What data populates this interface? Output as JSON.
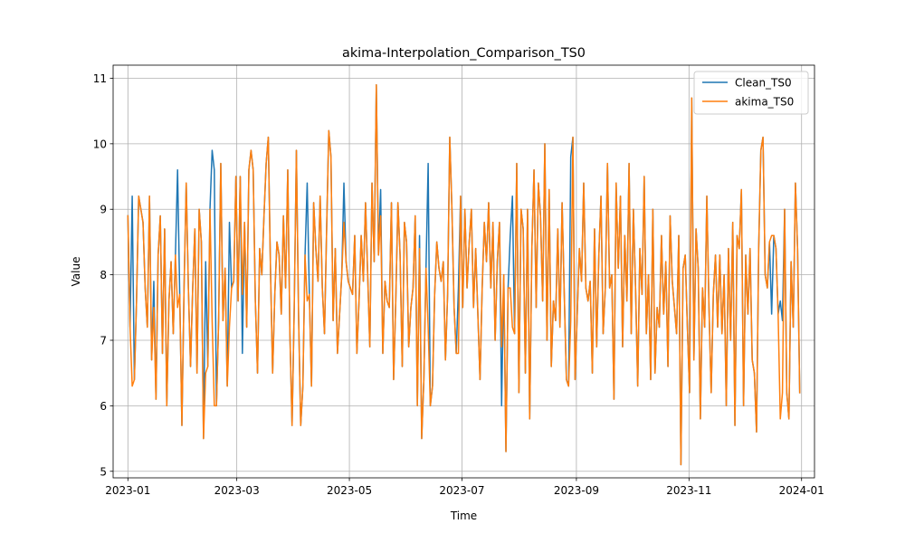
{
  "chart_data": {
    "type": "line",
    "title": "akima-Interpolation_Comparison_TS0",
    "xlabel": "Time",
    "ylabel": "Value",
    "x_start": "2023-01-01",
    "x_end": "2023-12-31",
    "xlim": [
      "2022-12-24",
      "2024-01-08"
    ],
    "ylim": [
      4.9,
      11.2
    ],
    "yticks": [
      5,
      6,
      7,
      8,
      9,
      10,
      11
    ],
    "xticks": [
      "2023-01",
      "2023-03",
      "2023-05",
      "2023-07",
      "2023-09",
      "2023-11",
      "2024-01"
    ],
    "grid": true,
    "legend": "top-right",
    "series": [
      {
        "name": "Clean_TS0",
        "color": "#1f77b4",
        "values": [
          8.9,
          7.2,
          9.2,
          6.4,
          7.6,
          9.2,
          9.0,
          8.8,
          7.8,
          7.2,
          9.2,
          6.7,
          7.9,
          6.1,
          8.3,
          8.9,
          6.8,
          8.7,
          6.0,
          7.6,
          8.2,
          7.1,
          8.3,
          9.6,
          7.7,
          5.7,
          7.8,
          9.4,
          7.8,
          6.6,
          7.8,
          8.7,
          6.5,
          9.0,
          8.5,
          5.5,
          8.2,
          6.6,
          9.0,
          9.9,
          9.6,
          6.0,
          7.3,
          9.7,
          7.3,
          8.1,
          6.3,
          8.8,
          7.8,
          7.9,
          9.5,
          7.6,
          9.5,
          6.8,
          8.8,
          7.2,
          9.6,
          9.9,
          9.6,
          7.6,
          6.5,
          8.4,
          8.0,
          8.9,
          9.7,
          10.1,
          8.1,
          6.5,
          7.7,
          8.5,
          8.3,
          7.4,
          8.9,
          7.8,
          9.6,
          7.1,
          5.7,
          7.5,
          9.9,
          7.4,
          5.7,
          6.3,
          8.3,
          9.4,
          7.7,
          6.3,
          9.1,
          8.4,
          7.9,
          9.2,
          7.8,
          7.1,
          8.7,
          10.2,
          9.8,
          7.3,
          8.4,
          6.8,
          7.4,
          8.0,
          9.4,
          8.2,
          7.9,
          7.8,
          7.7,
          8.6,
          6.8,
          7.6,
          8.6,
          7.9,
          9.1,
          8.0,
          6.9,
          9.4,
          8.2,
          10.9,
          8.3,
          9.3,
          6.8,
          7.9,
          7.6,
          7.5,
          9.1,
          6.4,
          7.6,
          9.1,
          8.3,
          6.6,
          8.8,
          8.5,
          6.9,
          7.5,
          7.8,
          8.9,
          6.0,
          8.6,
          5.5,
          6.4,
          8.1,
          9.7,
          6.0,
          6.3,
          7.7,
          8.5,
          8.1,
          7.9,
          8.2,
          6.7,
          7.7,
          10.1,
          9.0,
          7.5,
          6.8,
          7.8,
          9.2,
          7.5,
          9.0,
          7.8,
          8.5,
          9.0,
          7.5,
          8.4,
          7.4,
          6.4,
          7.8,
          8.8,
          8.2,
          9.1,
          7.8,
          8.8,
          7.0,
          8.2,
          8.8,
          6.0,
          8.0,
          5.3,
          7.8,
          8.6,
          9.2,
          7.1,
          9.7,
          6.2,
          9.0,
          8.7,
          6.5,
          9.0,
          5.8,
          8.4,
          9.6,
          7.5,
          9.4,
          8.9,
          7.6,
          10.0,
          7.0,
          9.3,
          6.6,
          7.6,
          7.3,
          8.7,
          7.2,
          9.1,
          7.7,
          6.4,
          6.3,
          9.8,
          10.1,
          6.4,
          7.4,
          8.4,
          7.9,
          9.4,
          7.8,
          7.6,
          7.9,
          6.5,
          8.7,
          6.9,
          8.3,
          9.2,
          7.1,
          7.8,
          9.7,
          7.8,
          8.0,
          6.1,
          9.4,
          8.1,
          9.2,
          6.9,
          8.6,
          7.6,
          9.7,
          7.1,
          9.0,
          7.8,
          6.3,
          8.4,
          7.7,
          9.5,
          7.1,
          8.0,
          6.4,
          9.0,
          6.5,
          7.5,
          7.2,
          8.6,
          7.4,
          8.2,
          6.6,
          8.9,
          7.9,
          7.5,
          7.1,
          8.6,
          5.1,
          8.1,
          8.3,
          7.2,
          6.2,
          10.7,
          6.7,
          8.7,
          8.1,
          5.8,
          7.8,
          7.2,
          9.2,
          7.5,
          6.2,
          7.7,
          8.3,
          7.2,
          8.3,
          7.1,
          8.0,
          6.0,
          8.4,
          7.0,
          8.8,
          5.7,
          8.6,
          8.4,
          9.3,
          6.0,
          8.3,
          7.4,
          8.4,
          6.7,
          6.5,
          5.6,
          8.4,
          9.9,
          10.1,
          8.0,
          7.8,
          8.5,
          7.4,
          8.6,
          8.4,
          7.4,
          7.6,
          7.3,
          9.0,
          6.2,
          5.8,
          8.2,
          7.2,
          9.4,
          8.4,
          6.2
        ]
      },
      {
        "name": "akima_TS0",
        "color": "#ff7f0e",
        "values": [
          8.9,
          7.2,
          6.3,
          6.4,
          7.6,
          9.2,
          9.0,
          8.8,
          7.8,
          7.2,
          9.2,
          6.7,
          7.5,
          6.1,
          8.3,
          8.9,
          6.8,
          8.7,
          6.0,
          7.6,
          8.2,
          7.1,
          8.3,
          7.5,
          7.7,
          5.7,
          7.8,
          9.4,
          7.8,
          6.6,
          7.8,
          8.7,
          6.5,
          9.0,
          8.5,
          5.5,
          6.5,
          6.6,
          9.0,
          7.3,
          6.0,
          6.0,
          7.3,
          9.7,
          7.3,
          8.1,
          6.3,
          7.2,
          7.8,
          7.9,
          9.5,
          7.6,
          9.5,
          7.7,
          8.8,
          7.2,
          9.6,
          9.9,
          9.6,
          7.6,
          6.5,
          8.4,
          8.0,
          8.9,
          9.7,
          10.1,
          8.1,
          6.5,
          7.7,
          8.5,
          8.3,
          7.4,
          8.9,
          7.8,
          9.6,
          7.1,
          5.7,
          7.5,
          9.9,
          7.4,
          5.7,
          6.3,
          8.3,
          7.6,
          7.7,
          6.3,
          9.1,
          8.4,
          7.9,
          9.2,
          7.8,
          7.1,
          8.7,
          10.2,
          9.8,
          7.3,
          8.4,
          6.8,
          7.4,
          8.0,
          8.8,
          8.2,
          7.9,
          7.8,
          7.7,
          8.6,
          6.8,
          7.6,
          8.6,
          7.9,
          9.1,
          8.0,
          6.9,
          9.4,
          8.2,
          10.9,
          8.3,
          8.9,
          6.8,
          7.9,
          7.6,
          7.5,
          9.1,
          6.4,
          7.6,
          9.1,
          8.3,
          6.6,
          8.8,
          8.5,
          6.9,
          7.5,
          7.8,
          8.9,
          6.0,
          8.4,
          5.5,
          6.4,
          8.1,
          7.2,
          6.0,
          6.3,
          7.7,
          8.5,
          8.1,
          7.9,
          8.2,
          6.7,
          7.7,
          10.1,
          9.0,
          7.5,
          6.8,
          6.8,
          9.2,
          7.5,
          9.0,
          7.8,
          8.5,
          9.0,
          7.5,
          8.4,
          7.4,
          6.4,
          7.8,
          8.8,
          8.2,
          9.1,
          7.8,
          8.8,
          7.0,
          8.2,
          8.8,
          6.9,
          8.0,
          5.3,
          7.8,
          7.8,
          7.2,
          7.1,
          9.7,
          6.2,
          9.0,
          8.7,
          6.5,
          9.0,
          5.8,
          8.4,
          9.6,
          7.5,
          9.4,
          8.9,
          7.6,
          10.0,
          7.0,
          9.3,
          6.6,
          7.6,
          7.3,
          8.7,
          7.2,
          9.1,
          7.7,
          6.4,
          6.3,
          7.3,
          10.1,
          6.4,
          7.4,
          8.4,
          7.9,
          9.4,
          7.8,
          7.6,
          7.9,
          6.5,
          8.7,
          6.9,
          8.3,
          9.2,
          7.1,
          7.8,
          9.7,
          7.8,
          8.0,
          6.1,
          9.4,
          8.1,
          9.2,
          6.9,
          8.6,
          7.6,
          9.7,
          7.1,
          9.0,
          7.8,
          6.3,
          8.4,
          7.7,
          9.5,
          7.1,
          8.0,
          6.4,
          9.0,
          6.5,
          7.5,
          7.2,
          8.6,
          7.4,
          8.2,
          6.6,
          8.9,
          7.9,
          7.5,
          7.1,
          8.6,
          5.1,
          8.1,
          8.3,
          7.2,
          6.2,
          10.7,
          6.7,
          8.7,
          8.1,
          5.8,
          7.8,
          7.2,
          9.2,
          7.5,
          6.2,
          7.7,
          8.3,
          7.2,
          8.3,
          7.1,
          8.0,
          6.0,
          8.4,
          7.0,
          8.8,
          5.7,
          8.6,
          8.4,
          9.3,
          6.0,
          8.3,
          7.4,
          8.4,
          6.7,
          6.5,
          5.6,
          8.4,
          9.9,
          10.1,
          8.0,
          7.8,
          8.5,
          8.6,
          8.6,
          8.4,
          7.4,
          5.8,
          6.2,
          9.0,
          6.2,
          5.8,
          8.2,
          7.2,
          9.4,
          8.4,
          6.2
        ]
      }
    ]
  }
}
